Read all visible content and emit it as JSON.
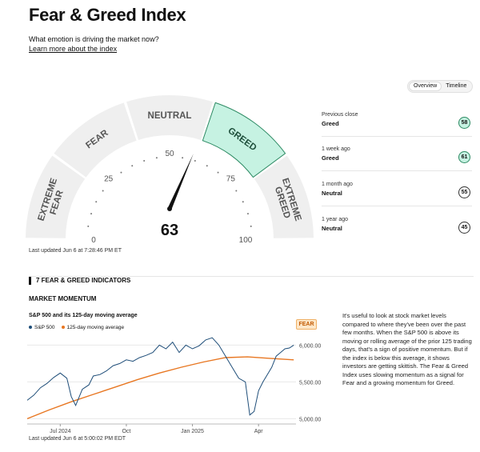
{
  "page": {
    "title": "Fear & Greed Index",
    "subtitle": "What emotion is driving the market now?",
    "learn_more": "Learn more about the index"
  },
  "toggle": {
    "overview": "Overview",
    "timeline": "Timeline"
  },
  "gauge": {
    "value": 63,
    "value_text": "63",
    "segments": [
      "EXTREME FEAR",
      "FEAR",
      "NEUTRAL",
      "GREED",
      "EXTREME GREED"
    ],
    "active_segment": "GREED",
    "scale_labels": [
      "0",
      "25",
      "50",
      "75",
      "100"
    ],
    "last_updated": "Last updated Jun 6 at 7:28:46 PM ET",
    "colors": {
      "segment": "#efefef",
      "active": "#c6f2e2",
      "active_border": "#2c8a63",
      "needle": "#111111"
    }
  },
  "history": [
    {
      "label": "Previous close",
      "rating": "Greed",
      "value": "58",
      "greed": true
    },
    {
      "label": "1 week ago",
      "rating": "Greed",
      "value": "61",
      "greed": true
    },
    {
      "label": "1 month ago",
      "rating": "Neutral",
      "value": "55",
      "greed": false
    },
    {
      "label": "1 year ago",
      "rating": "Neutral",
      "value": "45",
      "greed": false
    }
  ],
  "section": {
    "title": "7 FEAR & GREED INDICATORS"
  },
  "indicator": {
    "name": "MARKET MOMENTUM",
    "chart_title": "S&P 500 and its 125-day moving average",
    "rating": "FEAR",
    "updated": "Last updated Jun 6 at 5:00:02 PM EDT",
    "description": "It's useful to look at stock market levels compared to where they've been over the past few months. When the S&P 500 is above its moving or rolling average of the prior 125 trading days, that's a sign of positive momentum. But if the index is below this average, it shows investors are getting skittish. The Fear & Greed Index uses slowing momentum as a signal for Fear and a growing momentum for Greed."
  },
  "chart_data": {
    "type": "line",
    "title": "S&P 500 and its 125-day moving average",
    "x_tick_labels": [
      "Jul 2024",
      "Oct",
      "Jan 2025",
      "Apr"
    ],
    "x_tick_positions": [
      1.5,
      4.5,
      7.5,
      10.5
    ],
    "y_tick_labels": [
      "5,000.00",
      "5,500.00",
      "6,000.00"
    ],
    "y_ticks": [
      5000,
      5500,
      6000
    ],
    "ylim": [
      4950,
      6080
    ],
    "xlim": [
      0,
      12.2
    ],
    "series": [
      {
        "name": "S&P 500",
        "color": "#1f4e79",
        "x": [
          0,
          0.3,
          0.6,
          0.9,
          1.2,
          1.5,
          1.8,
          2.0,
          2.2,
          2.5,
          2.8,
          3.0,
          3.3,
          3.6,
          3.9,
          4.2,
          4.5,
          4.8,
          5.1,
          5.4,
          5.7,
          6.0,
          6.3,
          6.6,
          6.9,
          7.2,
          7.5,
          7.8,
          8.1,
          8.4,
          8.7,
          9.0,
          9.3,
          9.6,
          9.9,
          10.1,
          10.3,
          10.5,
          10.7,
          10.9,
          11.1,
          11.3,
          11.5,
          11.7,
          11.9,
          12.1
        ],
        "values": [
          5250,
          5320,
          5420,
          5480,
          5560,
          5620,
          5550,
          5300,
          5180,
          5400,
          5460,
          5580,
          5600,
          5650,
          5720,
          5750,
          5800,
          5780,
          5830,
          5860,
          5900,
          6000,
          5950,
          6040,
          5900,
          6000,
          5950,
          5990,
          6070,
          6100,
          6000,
          5850,
          5700,
          5550,
          5500,
          5050,
          5100,
          5380,
          5500,
          5600,
          5700,
          5850,
          5900,
          5950,
          5960,
          6000
        ]
      },
      {
        "name": "125-day moving average",
        "color": "#e87722",
        "x": [
          0,
          1,
          2,
          3,
          4,
          5,
          6,
          7,
          8,
          9,
          10,
          11,
          12.1
        ],
        "values": [
          5000,
          5120,
          5230,
          5330,
          5430,
          5530,
          5620,
          5700,
          5770,
          5830,
          5840,
          5820,
          5800
        ]
      }
    ]
  }
}
